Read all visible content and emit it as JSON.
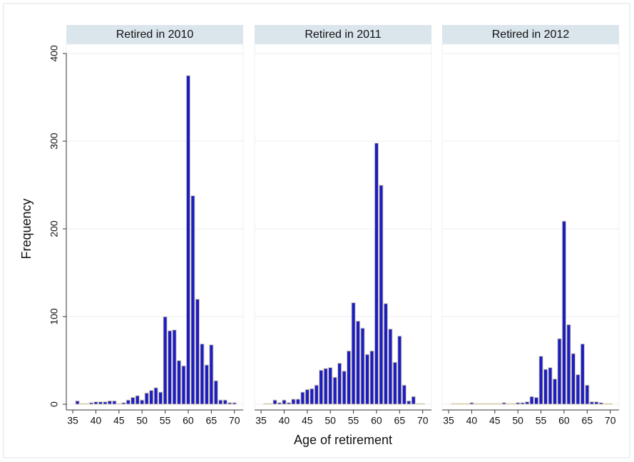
{
  "chart_data": [
    {
      "type": "histogram",
      "title": "Retired in 2010",
      "y_label": "Frequency",
      "bins": [
        35.5,
        36.5,
        37.5,
        38.5,
        39.5,
        40.5,
        41.5,
        42.5,
        43.5,
        44.5,
        45.5,
        46.5,
        47.5,
        48.5,
        49.5,
        50.5,
        51.5,
        52.5,
        53.5,
        54.5,
        55.5,
        56.5,
        57.5,
        58.5,
        59.5,
        60.5,
        61.5,
        62.5,
        63.5,
        64.5,
        65.5,
        66.5,
        67.5,
        68.5,
        69.5,
        70.5
      ],
      "values": [
        3,
        0,
        0,
        1,
        2,
        2,
        2,
        3,
        3,
        0,
        1,
        4,
        7,
        9,
        4,
        12,
        15,
        18,
        13,
        99,
        83,
        84,
        49,
        43,
        374,
        237,
        119,
        68,
        44,
        67,
        26,
        4,
        4,
        1,
        1
      ],
      "color": "#1c1cc4",
      "xlim": [
        33.6,
        71.9
      ],
      "xticks": [
        35,
        40,
        45,
        50,
        55,
        60,
        65,
        70
      ],
      "ylim": [
        0,
        400
      ],
      "yticks": [
        0,
        100,
        200,
        300,
        400
      ],
      "grid": true
    },
    {
      "type": "histogram",
      "title": "Retired in 2011",
      "x_label": "Age of retirement",
      "bins": [
        35.5,
        36.5,
        37.5,
        38.5,
        39.5,
        40.5,
        41.5,
        42.5,
        43.5,
        44.5,
        45.5,
        46.5,
        47.5,
        48.5,
        49.5,
        50.5,
        51.5,
        52.5,
        53.5,
        54.5,
        55.5,
        56.5,
        57.5,
        58.5,
        59.5,
        60.5,
        61.5,
        62.5,
        63.5,
        64.5,
        65.5,
        66.5,
        67.5,
        68.5,
        69.5,
        70.5
      ],
      "values": [
        0,
        0,
        4,
        1,
        4,
        1,
        5,
        5,
        13,
        16,
        17,
        21,
        38,
        40,
        41,
        30,
        46,
        37,
        60,
        115,
        94,
        86,
        56,
        60,
        297,
        249,
        114,
        85,
        47,
        77,
        21,
        3,
        8,
        0,
        0
      ],
      "color": "#1c1cc4",
      "xlim": [
        33.6,
        71.9
      ],
      "xticks": [
        35,
        40,
        45,
        50,
        55,
        60,
        65,
        70
      ],
      "ylim": [
        0,
        400
      ],
      "yticks": [
        0,
        100,
        200,
        300,
        400
      ],
      "grid": true
    },
    {
      "type": "histogram",
      "title": "Retired in 2012",
      "bins": [
        35.5,
        36.5,
        37.5,
        38.5,
        39.5,
        40.5,
        41.5,
        42.5,
        43.5,
        44.5,
        45.5,
        46.5,
        47.5,
        48.5,
        49.5,
        50.5,
        51.5,
        52.5,
        53.5,
        54.5,
        55.5,
        56.5,
        57.5,
        58.5,
        59.5,
        60.5,
        61.5,
        62.5,
        63.5,
        64.5,
        65.5,
        66.5,
        67.5,
        68.5,
        69.5,
        70.5
      ],
      "values": [
        0,
        0,
        0,
        0,
        1,
        0,
        0,
        0,
        0,
        0,
        0,
        1,
        0,
        0,
        1,
        1,
        2,
        8,
        7,
        54,
        39,
        41,
        28,
        74,
        208,
        90,
        57,
        33,
        68,
        21,
        2,
        2,
        1,
        0,
        0
      ],
      "color": "#1c1cc4",
      "xlim": [
        33.6,
        71.9
      ],
      "xticks": [
        35,
        40,
        45,
        50,
        55,
        60,
        65,
        70
      ],
      "ylim": [
        0,
        400
      ],
      "yticks": [
        0,
        100,
        200,
        300,
        400
      ],
      "grid": true
    }
  ]
}
